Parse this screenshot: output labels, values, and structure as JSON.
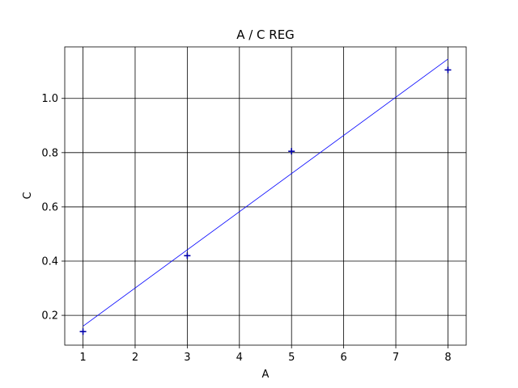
{
  "chart_data": {
    "type": "scatter",
    "title": "A / C REG",
    "xlabel": "A",
    "ylabel": "C",
    "xlim": [
      0.65,
      8.35
    ],
    "ylim": [
      0.09,
      1.19
    ],
    "xticks": [
      1,
      2,
      3,
      4,
      5,
      6,
      7,
      8
    ],
    "yticks": [
      0.2,
      0.4,
      0.6,
      0.8,
      1.0
    ],
    "ytick_labels": [
      "0.2",
      "0.4",
      "0.6",
      "0.8",
      "1.0"
    ],
    "grid": true,
    "series": [
      {
        "kind": "points",
        "marker": "+",
        "color": "#0000aa",
        "x": [
          1,
          3,
          5,
          8
        ],
        "y": [
          0.14,
          0.42,
          0.805,
          1.105
        ]
      },
      {
        "kind": "regression-line",
        "color": "#0000ff",
        "x": [
          1,
          8
        ],
        "y": [
          0.16,
          1.145
        ]
      }
    ]
  }
}
